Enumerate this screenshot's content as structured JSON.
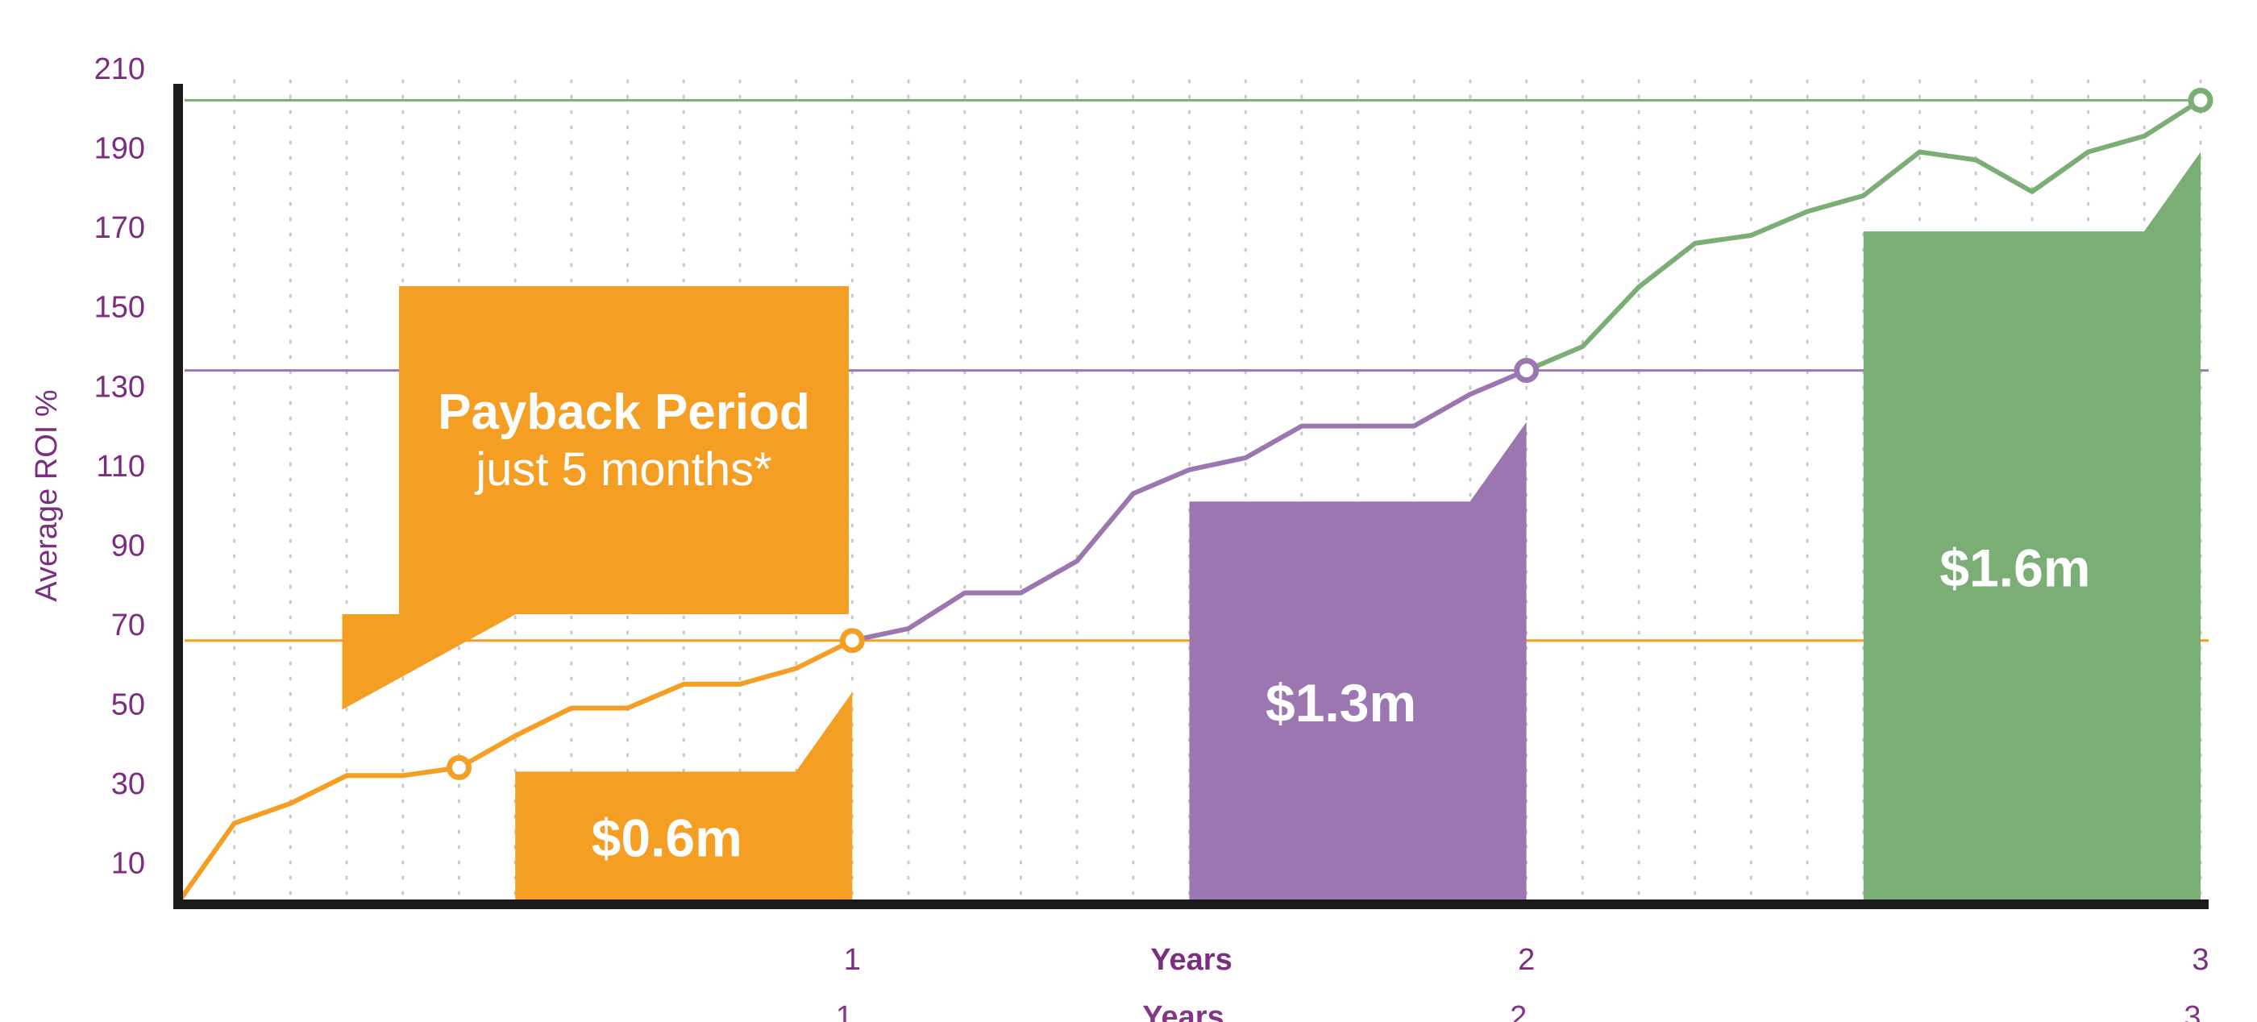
{
  "chart_data": {
    "type": "line",
    "ylabel": "Average ROI %",
    "xlabel": "Years",
    "ylim": [
      0,
      210
    ],
    "xlim": [
      0,
      3
    ],
    "yticks": [
      10,
      30,
      50,
      70,
      90,
      110,
      130,
      150,
      170,
      190,
      210
    ],
    "xticks": [
      {
        "value": 1,
        "label": "1"
      },
      {
        "value": 2,
        "label": "2"
      },
      {
        "value": 3,
        "label": "3"
      }
    ],
    "grid": "dotted vertical",
    "series": [
      {
        "color": "#f49e23",
        "x": [
          0,
          0.0833,
          0.1667,
          0.25,
          0.3333,
          0.4167,
          0.5,
          0.5833,
          0.6667,
          0.75,
          0.8333,
          0.9167,
          1.0
        ],
        "y": [
          0,
          20,
          25,
          32,
          32,
          34,
          42,
          49,
          49,
          55,
          55,
          59,
          66
        ]
      },
      {
        "color": "#9b76b1",
        "x": [
          1.0,
          1.0833,
          1.1667,
          1.25,
          1.3333,
          1.4167,
          1.5,
          1.5833,
          1.6667,
          1.75,
          1.8333,
          1.9167,
          2.0
        ],
        "y": [
          66,
          69,
          78,
          78,
          86,
          103,
          109,
          112,
          120,
          120,
          120,
          128,
          134
        ]
      },
      {
        "color": "#7aae74",
        "x": [
          2.0,
          2.0833,
          2.1667,
          2.25,
          2.3333,
          2.4167,
          2.5,
          2.5833,
          2.6667,
          2.75,
          2.8333,
          2.9167,
          3.0
        ],
        "y": [
          134,
          140,
          155,
          166,
          168,
          174,
          178,
          189,
          187,
          179,
          189,
          193,
          202
        ]
      }
    ],
    "markers": [
      {
        "x": 0.4167,
        "y": 34,
        "color": "#f49e23"
      },
      {
        "x": 1.0,
        "y": 66,
        "color": "#f49e23"
      },
      {
        "x": 2.0,
        "y": 134,
        "color": "#9b76b1"
      },
      {
        "x": 3.0,
        "y": 202,
        "color": "#7aae74"
      }
    ],
    "reference_lines": [
      {
        "y": 66,
        "color": "#f49e23"
      },
      {
        "y": 134,
        "color": "#9b76b1"
      },
      {
        "y": 202,
        "color": "#7aae74"
      }
    ],
    "bars": [
      {
        "label": "$0.6m",
        "x_start": 0.5,
        "x_end": 1.0,
        "top": 33,
        "peak": 53,
        "color": "#f49e23"
      },
      {
        "label": "$1.3m",
        "x_start": 1.5,
        "x_end": 2.0,
        "top": 101,
        "peak": 121,
        "color": "#9b76b1"
      },
      {
        "label": "$1.6m",
        "x_start": 2.5,
        "x_end": 3.0,
        "top": 169,
        "peak": 189,
        "color": "#7aae74"
      }
    ],
    "callout": {
      "title": "Payback Period",
      "subtitle": "just 5 months*",
      "color": "#f49e23",
      "pointer_x": 0.4167,
      "pointer_y": 49
    }
  }
}
